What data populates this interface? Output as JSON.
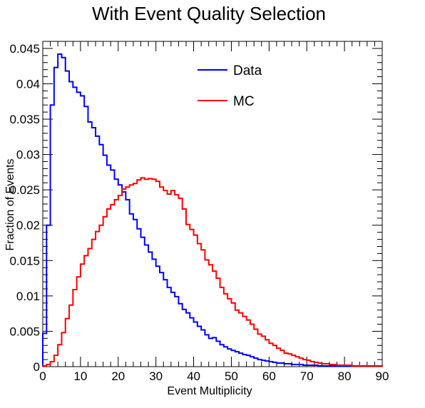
{
  "chart_data": {
    "type": "line",
    "title": "With Event Quality Selection",
    "xlabel": "Event Multiplicity",
    "ylabel": "Fraction of Events",
    "xlim": [
      0,
      90
    ],
    "ylim": [
      0,
      0.046
    ],
    "xticks": [
      "0",
      "10",
      "20",
      "30",
      "40",
      "50",
      "60",
      "70",
      "80",
      "90"
    ],
    "yticks": [
      "0",
      "0.005",
      "0.01",
      "0.015",
      "0.02",
      "0.025",
      "0.03",
      "0.035",
      "0.04",
      "0.045"
    ],
    "legend_position": "top-right",
    "grid": false,
    "bin_width": 1,
    "series": [
      {
        "name": "Data",
        "color": "#0000ff",
        "values": [
          0.0047,
          0.02,
          0.037,
          0.0423,
          0.0442,
          0.0437,
          0.0418,
          0.0403,
          0.0395,
          0.0388,
          0.0383,
          0.0368,
          0.0346,
          0.0338,
          0.0326,
          0.0314,
          0.0299,
          0.0285,
          0.0278,
          0.0265,
          0.0257,
          0.0247,
          0.0236,
          0.0216,
          0.0208,
          0.0195,
          0.0183,
          0.0172,
          0.0162,
          0.0152,
          0.0142,
          0.0133,
          0.0123,
          0.0112,
          0.0105,
          0.0099,
          0.0089,
          0.0081,
          0.0076,
          0.0069,
          0.0063,
          0.0057,
          0.0052,
          0.0045,
          0.004,
          0.0041,
          0.0036,
          0.0031,
          0.0028,
          0.0025,
          0.0023,
          0.0021,
          0.0019,
          0.0017,
          0.0016,
          0.0014,
          0.0012,
          0.001,
          0.0009,
          0.0008,
          0.0007,
          0.0006,
          0.0005,
          0.0005,
          0.0004,
          0.0004,
          0.0003,
          0.0003,
          0.0003,
          0.0002,
          0.0002,
          0.0002,
          0.0002,
          0.0001,
          0.0001,
          0.0001,
          0.0001,
          0.0001,
          0.0001,
          0.0001,
          0.0001,
          0.0001,
          0.0001,
          0.0001,
          0.0001,
          0.0001,
          0.0001,
          0.0001,
          0.0001,
          0.0001
        ]
      },
      {
        "name": "MC",
        "color": "#ff0000",
        "values": [
          0.0001,
          0.0003,
          0.0007,
          0.0016,
          0.0031,
          0.0048,
          0.0068,
          0.0087,
          0.0109,
          0.0127,
          0.0145,
          0.0157,
          0.0167,
          0.018,
          0.0191,
          0.02,
          0.0212,
          0.0223,
          0.0229,
          0.0236,
          0.0242,
          0.0251,
          0.0254,
          0.0257,
          0.0259,
          0.0264,
          0.0267,
          0.0265,
          0.0266,
          0.0265,
          0.0262,
          0.0254,
          0.0249,
          0.0244,
          0.0249,
          0.0243,
          0.0238,
          0.0223,
          0.0201,
          0.0194,
          0.0186,
          0.0174,
          0.0165,
          0.0151,
          0.0144,
          0.0135,
          0.0125,
          0.0112,
          0.0103,
          0.0096,
          0.009,
          0.008,
          0.0076,
          0.0071,
          0.0066,
          0.006,
          0.0053,
          0.0046,
          0.0043,
          0.0038,
          0.0033,
          0.003,
          0.0026,
          0.0023,
          0.0019,
          0.0018,
          0.0016,
          0.0014,
          0.0012,
          0.001,
          0.0009,
          0.0007,
          0.0006,
          0.0005,
          0.0004,
          0.0004,
          0.0003,
          0.0003,
          0.0002,
          0.0002,
          0.0002,
          0.0002,
          0.0001,
          0.0001,
          0.0001,
          0.0001,
          0.0001,
          0.0001,
          0.0001,
          0.0001
        ]
      }
    ]
  }
}
